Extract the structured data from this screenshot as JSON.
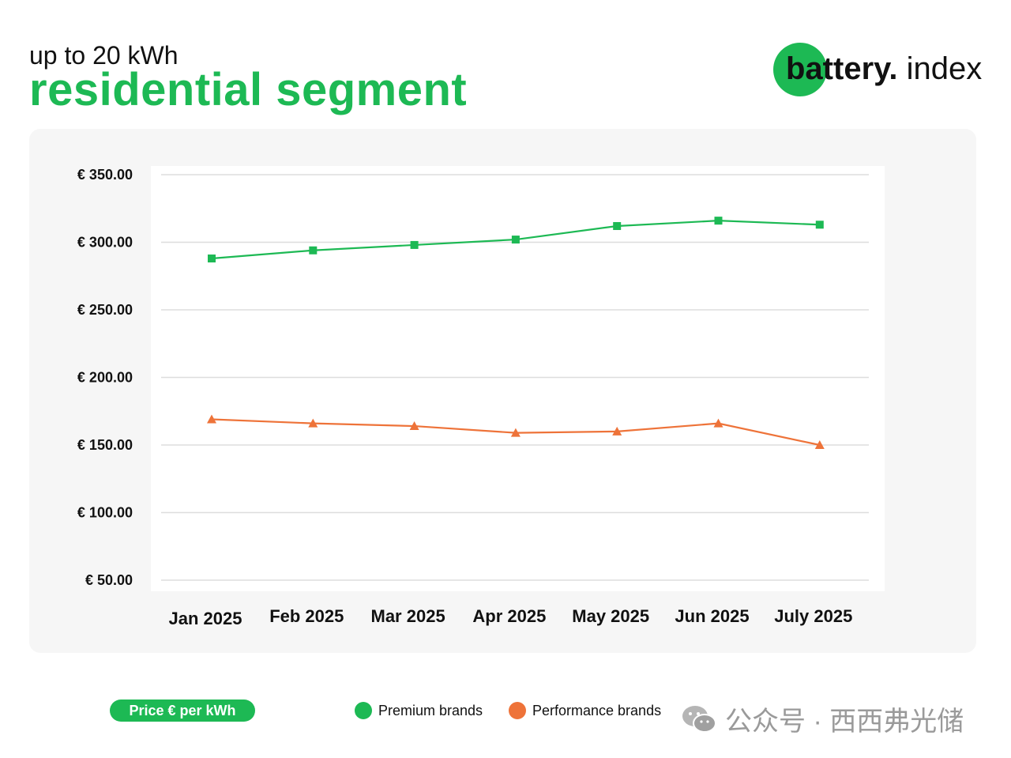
{
  "header": {
    "subtitle": "up to 20 kWh",
    "title": "residential segment"
  },
  "brand": {
    "bold": "battery.",
    "light": " index"
  },
  "colors": {
    "green": "#1db954",
    "premium_line": "#1db954",
    "performance_line": "#ee7339",
    "gridline": "#dddddd"
  },
  "chart_data": {
    "type": "line",
    "categories": [
      "Jan 2025",
      "Feb 2025",
      "Mar 2025",
      "Apr 2025",
      "May 2025",
      "Jun 2025",
      "July 2025"
    ],
    "series": [
      {
        "name": "Premium brands",
        "marker": "square",
        "values": [
          288,
          294,
          298,
          302,
          312,
          316,
          313
        ]
      },
      {
        "name": "Performance brands",
        "marker": "triangle",
        "values": [
          169,
          166,
          164,
          159,
          160,
          166,
          150
        ]
      }
    ],
    "yticks": [
      "€ 350.00",
      "€ 300.00",
      "€ 250.00",
      "€ 200.00",
      "€ 150.00",
      "€ 100.00",
      "€ 50.00"
    ],
    "ytick_values": [
      350,
      300,
      250,
      200,
      150,
      100,
      50
    ],
    "ylim": [
      50,
      350
    ],
    "ylabel": "Price € per kWh",
    "grid": true
  },
  "footer": {
    "price_label": "Price € per kWh",
    "legend": [
      {
        "label": "Premium brands",
        "color": "#1db954"
      },
      {
        "label": "Performance brands",
        "color": "#ee7339"
      }
    ],
    "wechat_text": "公众号 · 西西弗光储"
  }
}
